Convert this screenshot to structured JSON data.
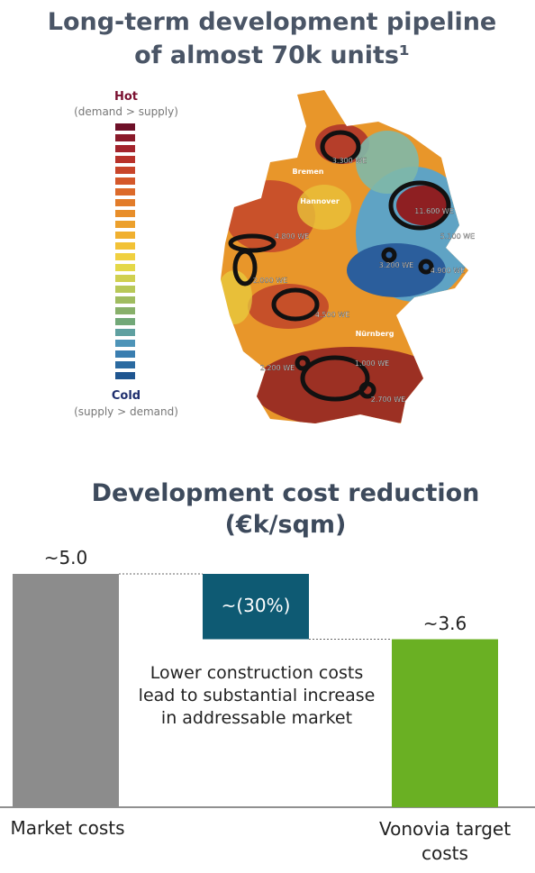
{
  "title": "Long-term development pipeline of almost 70k units¹",
  "legend": {
    "hot": "Hot",
    "hot_note": "(demand > supply)",
    "cold": "Cold",
    "cold_note": "(supply > demand)"
  },
  "map": {
    "cities": [
      "Bremen",
      "Hannover",
      "Nürnberg"
    ],
    "labels": [
      "3.300 WE",
      "11.600 WE",
      "5.100 WE",
      "3.200 WE",
      "4.900 WE",
      "4.800 WE",
      "2.000 WE",
      "4.500 WE",
      "1.000 WE",
      "2.200 WE",
      "2.700 WE"
    ]
  },
  "chart_data": {
    "type": "waterfall",
    "title": "Development cost reduction (€k/sqm)",
    "categories": [
      "Market costs",
      "Vonovia target costs"
    ],
    "values": [
      5.0,
      3.6
    ],
    "value_labels": [
      "~5.0",
      "~3.6"
    ],
    "change_label": "~(30%)",
    "colors": [
      "#8c8c8c",
      "#6ab023"
    ],
    "change_color": "#0e5a73",
    "annotation": "Lower construction costs lead to substantial increase in addressable market"
  }
}
